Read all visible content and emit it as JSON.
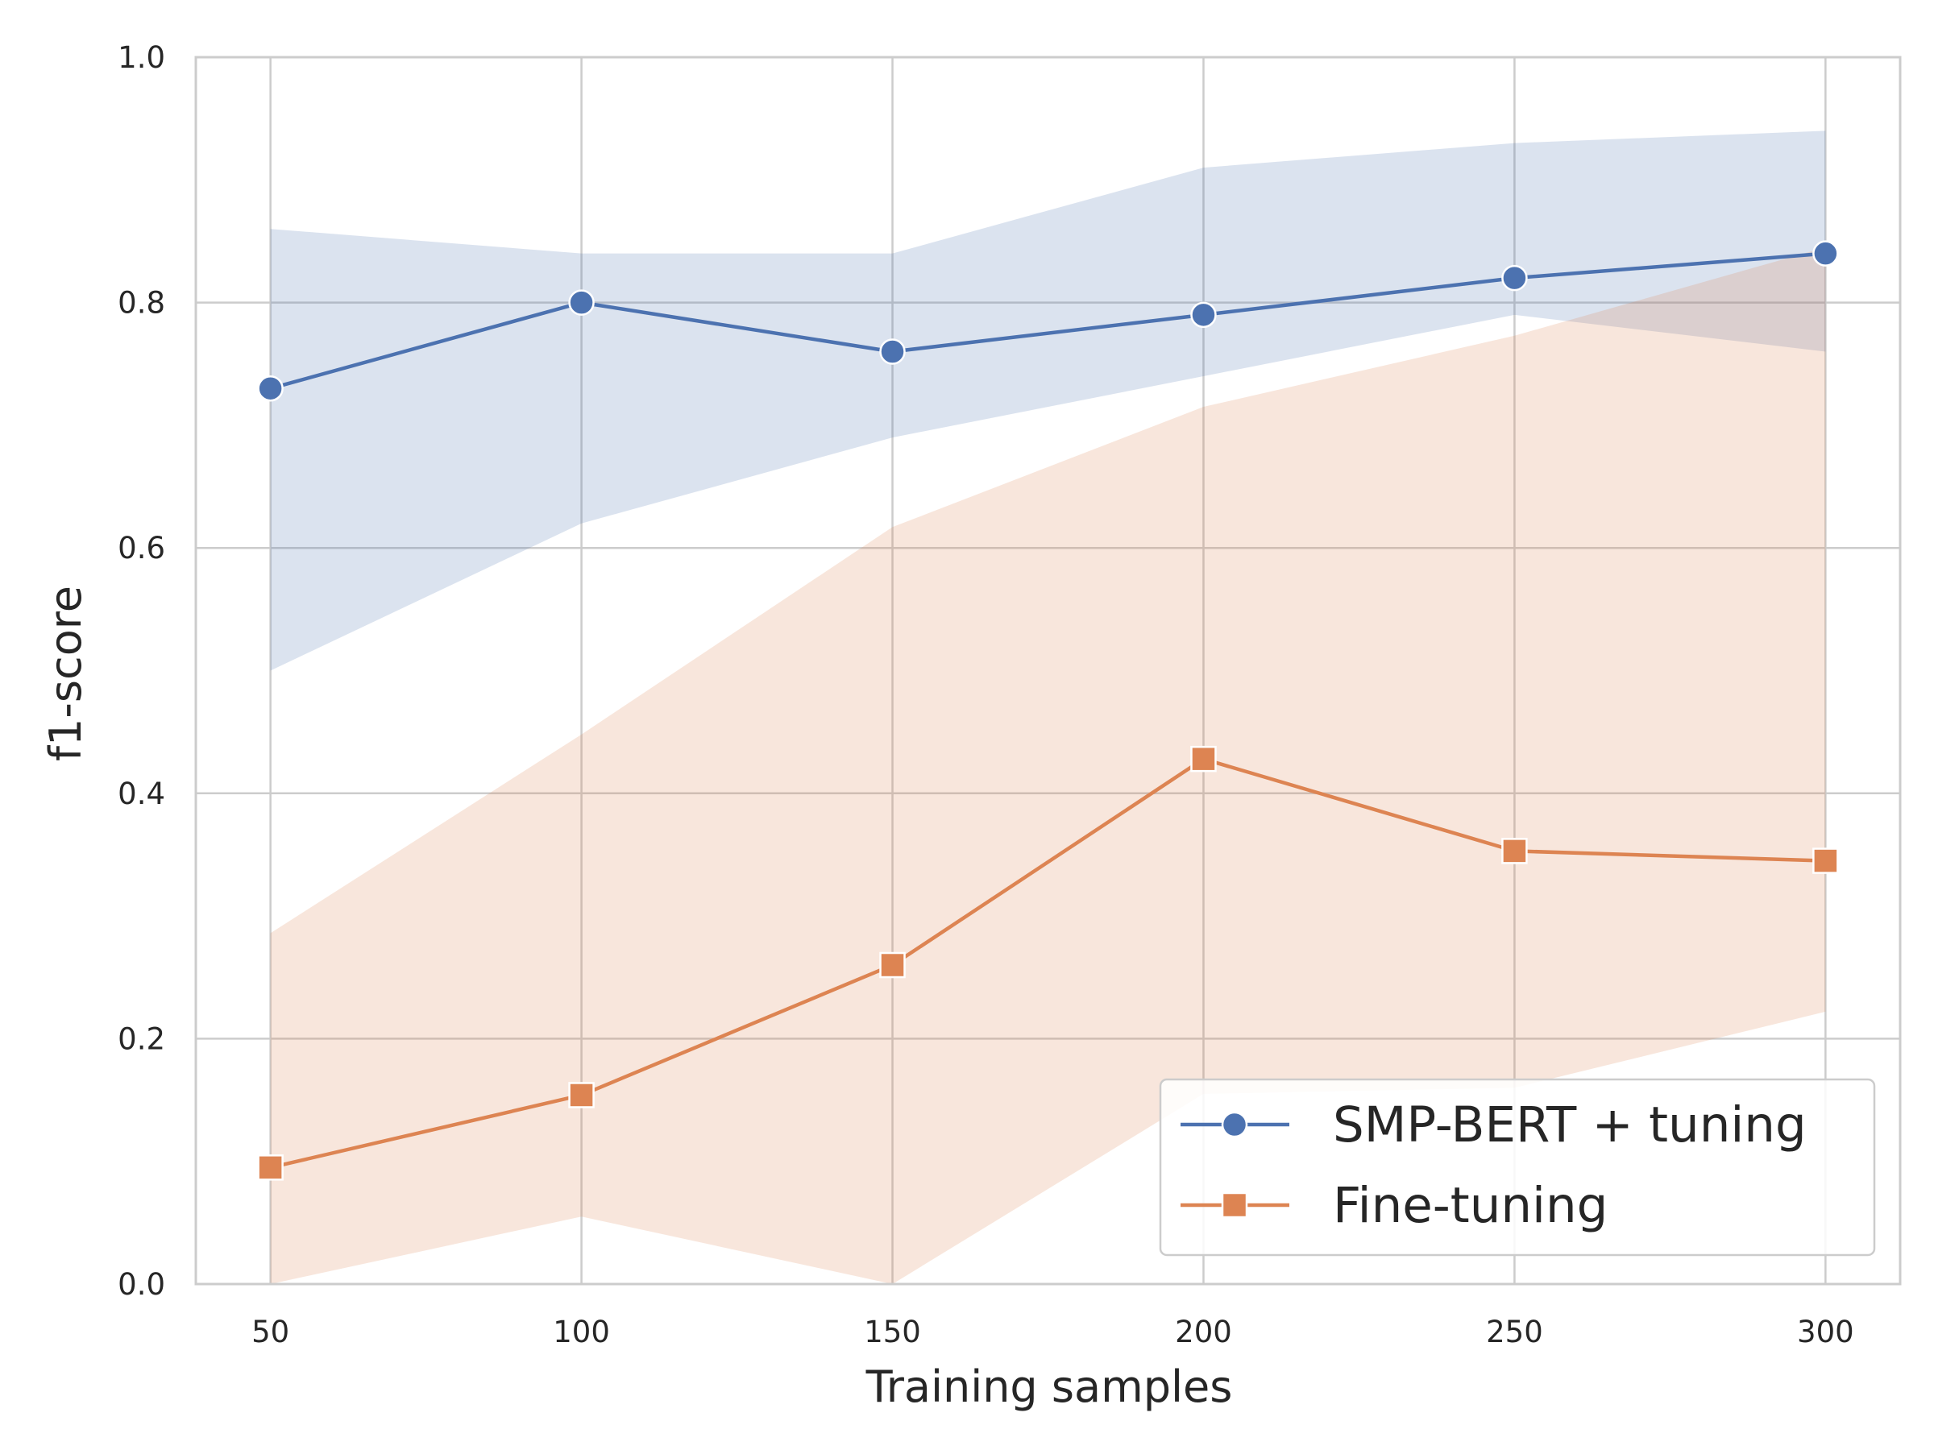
{
  "chart_data": {
    "type": "line",
    "title": "",
    "xlabel": "Training samples",
    "ylabel": "f1-score",
    "x": [
      50,
      100,
      150,
      200,
      250,
      300
    ],
    "xlim": [
      38,
      312
    ],
    "ylim": [
      0.0,
      1.0
    ],
    "xticks": [
      "50",
      "100",
      "150",
      "200",
      "250",
      "300"
    ],
    "yticks": [
      "0.0",
      "0.2",
      "0.4",
      "0.6",
      "0.8",
      "1.0"
    ],
    "grid": true,
    "legend_position": "lower-right",
    "series": [
      {
        "name": "SMP-BERT + tuning",
        "values": [
          0.73,
          0.8,
          0.76,
          0.79,
          0.82,
          0.84
        ],
        "band_low": [
          0.5,
          0.62,
          0.69,
          0.74,
          0.79,
          0.76
        ],
        "band_high": [
          0.86,
          0.84,
          0.84,
          0.91,
          0.93,
          0.94
        ],
        "color": "#4c72b0",
        "marker": "circle"
      },
      {
        "name": "Fine-tuning",
        "values": [
          0.095,
          0.154,
          0.26,
          0.428,
          0.353,
          0.345
        ],
        "band_low": [
          0.0,
          0.055,
          0.0,
          0.155,
          0.16,
          0.222
        ],
        "band_high": [
          0.286,
          0.448,
          0.617,
          0.715,
          0.773,
          0.845
        ],
        "color": "#dd8452",
        "marker": "square"
      }
    ]
  }
}
